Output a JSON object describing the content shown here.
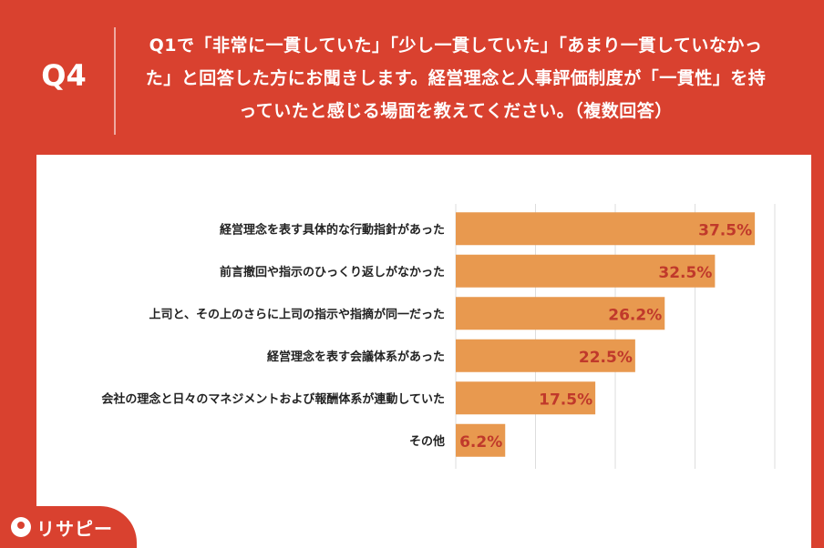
{
  "header": {
    "q_label": "Q4",
    "question": "Q1で「非常に一貫していた」「少し一貫していた」「あまり一貫していなかった」と回答した方にお聞きします。経営理念と人事評価制度が「一貫性」を持っていたと感じる場面を教えてください。（複数回答）"
  },
  "brand": {
    "name": "リサピー"
  },
  "colors": {
    "background": "#d9412f",
    "bar": "#e8994f",
    "value_label": "#c0392b",
    "grid": "#dddddd"
  },
  "chart_data": {
    "type": "bar",
    "orientation": "horizontal",
    "categories": [
      "経営理念を表す具体的な行動指針があった",
      "前言撤回や指示のひっくり返しがなかった",
      "上司と、その上のさらに上司の指示や指摘が同一だった",
      "経営理念を表す会議体系があった",
      "会社の理念と日々のマネジメントおよび報酬体系が連動していた",
      "その他"
    ],
    "values": [
      37.5,
      32.5,
      26.2,
      22.5,
      17.5,
      6.2
    ],
    "value_labels": [
      "37.5%",
      "32.5%",
      "26.2%",
      "22.5%",
      "17.5%",
      "6.2%"
    ],
    "xlim": [
      0,
      40
    ],
    "grid": true
  }
}
